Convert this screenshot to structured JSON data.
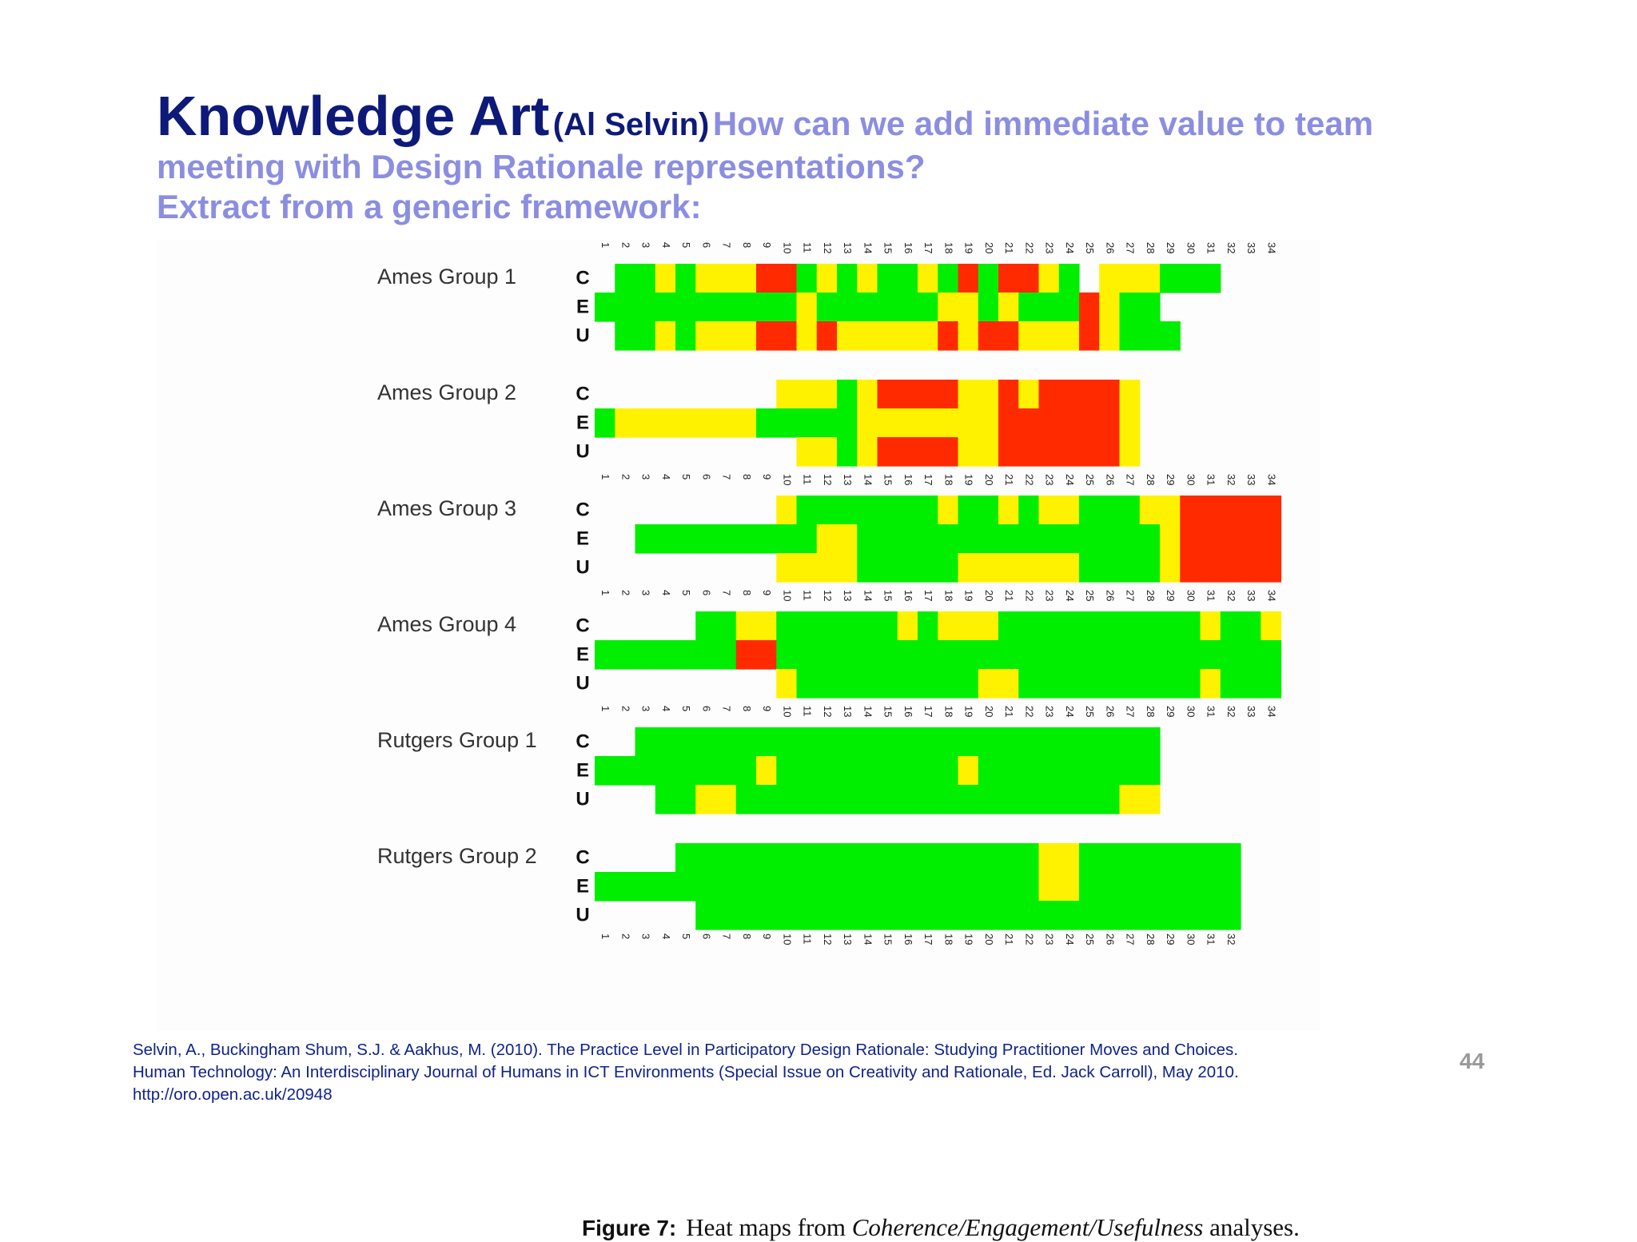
{
  "slide": {
    "title": "Knowledge Art",
    "author": "(Al Selvin)",
    "question_line1": "How can we add immediate value to team",
    "question_line2": "meeting with Design Rationale representations?",
    "subtitle": "Extract from a generic framework:",
    "page_number": "44"
  },
  "caption": {
    "label": "Figure 7:",
    "text_before": "Heat maps from ",
    "text_italic": "Coherence/Engagement/Usefulness",
    "text_after": " analyses."
  },
  "citation": {
    "line1": "Selvin, A., Buckingham Shum, S.J. & Aakhus, M. (2010). The Practice Level in Participatory Design Rationale: Studying Practitioner Moves and Choices.",
    "line2": "Human Technology: An Interdisciplinary Journal of Humans in ICT Environments (Special Issue on Creativity and Rationale, Ed. Jack Carroll), May 2010.",
    "line3": "http://oro.open.ac.uk/20948"
  },
  "chart_data": {
    "type": "heatmap",
    "title": "",
    "xlabel": "",
    "ylabel": "",
    "row_labels": [
      "C",
      "E",
      "U"
    ],
    "legend": {
      "G": "#00ee00",
      "Y": "#fff200",
      "R": "#ff2a00",
      ".": "empty"
    },
    "groups": [
      {
        "name": "Ames Group 1",
        "columns": 34,
        "axis_top": true,
        "axis_bottom": false,
        "C": ".GGYGYYYRRGYGYGGYGRGRRYG.YYYGGG...",
        "E": "GGGGGGGGGGYGGGGGGYYGYGGGRYGG......",
        "U": ".GGYGYYYRRYRYYYYYRYRRYYYRYGGG....."
      },
      {
        "name": "Ames Group 2",
        "columns": 34,
        "axis_top": false,
        "axis_bottom": false,
        "C": ".........YYYGYRRRRYYRYRRRRY.......",
        "E": "GYYYYYYYGGGGGYYYYYYYRRRRRRY.......",
        "U": "..........YYGYRRRRYYRRRRRRY.......",
        "comment": "none"
      },
      {
        "name": "Ames Group 3",
        "columns": 34,
        "axis_top": true,
        "axis_bottom": false,
        "C": ".........YGGGGGGGYGGYGYYGGGYYRRRRR",
        "E": "..GGGGGGGGGYYGGGGGGGGGGGGGGGYRRRRR",
        "U": ".........YYYYGGGGGYYYYYYGGGGYRRRRR"
      },
      {
        "name": "Ames Group 4",
        "columns": 34,
        "axis_top": true,
        "axis_bottom": false,
        "C": ".....GGYYGGGGGGYGYYYGGGGGGGGGGYGGY",
        "E": "GGGGGGGRRGGGGGGGGGGGGGGGGGGGGGGGGG",
        "U": ".........YGGGGGGGGGYYGGGGGGGGGYGGG"
      },
      {
        "name": "Rutgers Group 1",
        "columns": 34,
        "axis_top": true,
        "axis_bottom": false,
        "C": "..GGGGGGGGGGGGGGGGGGGGGGGGGG......",
        "E": "GGGGGGGGYGGGGGGGGGYGGGGGGGGG......",
        "U": "...GGYYGGGGGGGGGGGGGGGGGGGYY......"
      },
      {
        "name": "Rutgers Group 2",
        "columns": 32,
        "axis_top": false,
        "axis_bottom": true,
        "C": "....GGGGGGGGGGGGGGGGGGYYGGGGGGGG",
        "E": "GGGGGGGGGGGGGGGGGGGGGGYYGGGGGGGG",
        "U": ".....GGGGGGGGGGGGGGGGGGGGGGGGGGG"
      }
    ]
  }
}
